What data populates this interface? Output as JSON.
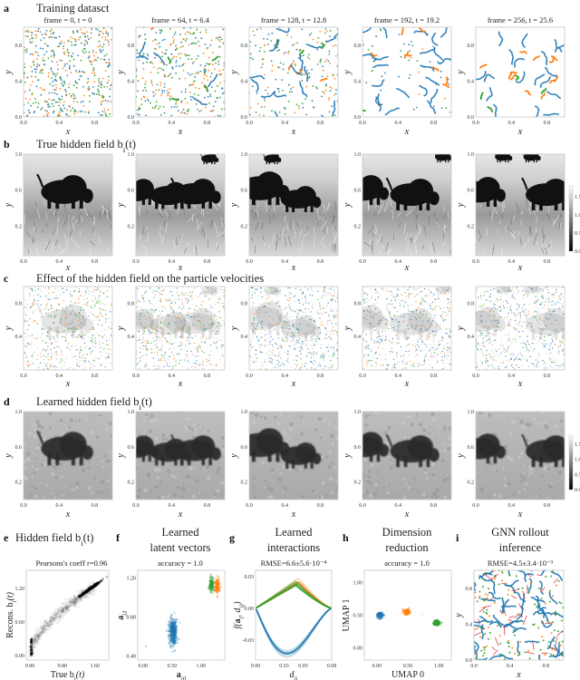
{
  "colors": {
    "type_blue": "#1f77b4",
    "type_orange": "#ff7f0e",
    "type_green": "#2ca02c",
    "rollout_red": "#d62728"
  },
  "chart_data": [
    {
      "panel": "a",
      "type": "scatter",
      "letter": "a",
      "title": "Training datasct",
      "frames": [
        "frame = 0,   t = 0",
        "frame = 64,   t = 6.4",
        "frame = 128,   t = 12.8",
        "frame = 192,   t = 19.2",
        "frame = 256,   t = 25.6"
      ],
      "xlabel": "x",
      "ylabel": "y",
      "xlim": [
        0,
        1
      ],
      "ylim": [
        0,
        1
      ],
      "xticks": [
        "0.0",
        "0.4",
        "0.8"
      ],
      "yticks": [
        "0.0",
        "0.4",
        "0.8"
      ]
    },
    {
      "panel": "b",
      "type": "heatmap",
      "letter": "b",
      "title": [
        "True hidden field b",
        "i",
        "(t)"
      ],
      "xlabel": "x",
      "ylabel": "y",
      "xlim": [
        0,
        1
      ],
      "ylim": [
        -0.13,
        1.0
      ],
      "xticks": [
        "0.0",
        "0.4",
        "0.8"
      ],
      "yticks": [
        "0.2",
        "0.6",
        "1.0"
      ],
      "colorbar_ticks": [
        "0.0",
        "0.5",
        "1.0",
        "1.5"
      ],
      "colormap": "gray"
    },
    {
      "panel": "c",
      "type": "scatter",
      "letter": "c",
      "title": "Effect of the hidden field on the particle velocities",
      "xlabel": "x",
      "ylabel": "y",
      "xlim": [
        0,
        1
      ],
      "ylim": [
        0,
        1
      ],
      "xticks": [
        "0.0",
        "0.4",
        "0.8"
      ],
      "yticks": [
        "0.4",
        "0.8"
      ]
    },
    {
      "panel": "d",
      "type": "heatmap",
      "letter": "d",
      "title": [
        "Learned hidden field b",
        "i",
        "(t)"
      ],
      "xlabel": "x",
      "ylabel": "y",
      "xlim": [
        0,
        1
      ],
      "ylim": [
        0,
        1.0
      ],
      "xticks": [
        "0.0",
        "0.4",
        "0.8"
      ],
      "yticks": [
        "0.2",
        "0.6",
        "1.0"
      ],
      "colorbar_ticks": [
        "0.0",
        "0.5",
        "1.0",
        "1.5"
      ],
      "colormap": "gray"
    },
    {
      "panel": "e",
      "type": "scatter",
      "letter": "e",
      "title": [
        "Hidden field b",
        "i",
        "(t)"
      ],
      "subtitle": "Pearsons's coeff r=0.96",
      "xlabel": [
        "True b",
        "i",
        "(t)"
      ],
      "ylabel": [
        "Recons. b",
        "i",
        "(t)"
      ],
      "xlim": [
        -0.09,
        1.94
      ],
      "ylim": [
        -0.08,
        1.52
      ],
      "xticks": [
        "0.00",
        "0.80",
        "1.60"
      ],
      "yticks": [
        "0.00",
        "0.60",
        "1.20"
      ],
      "dense_cluster": [
        1.5,
        1.2
      ]
    },
    {
      "panel": "f",
      "type": "scatter",
      "letter": "f",
      "title": [
        "Learned",
        "latent vectors"
      ],
      "subtitle": "accuracy = 1.0",
      "xlabel": [
        "a",
        "i0"
      ],
      "ylabel": [
        "a",
        "i1"
      ],
      "xlim": [
        -0.09,
        1.41
      ],
      "ylim": [
        0.36,
        1.28
      ],
      "xticks": [
        "0.00",
        "0.50",
        "1.00"
      ],
      "yticks": [
        "0.40",
        "0.80",
        "1.20"
      ],
      "clusters": [
        {
          "color": "#1f77b4",
          "center": [
            0.52,
            0.65
          ],
          "spread": [
            0.035,
            0.07
          ]
        },
        {
          "color": "#2ca02c",
          "center": [
            1.18,
            1.13
          ],
          "spread": [
            0.02,
            0.04
          ]
        },
        {
          "color": "#ff7f0e",
          "center": [
            1.28,
            1.12
          ],
          "spread": [
            0.02,
            0.04
          ]
        }
      ]
    },
    {
      "panel": "g",
      "type": "line",
      "letter": "g",
      "title": [
        "Learned",
        "interactions"
      ],
      "subtitle": "RMSE=6.6±5.6·10⁻⁴",
      "xlabel": [
        "d",
        "ij"
      ],
      "ylabel": [
        "f(",
        "a",
        "i",
        ", d",
        "ij",
        ")"
      ],
      "xlim": [
        0,
        0.08
      ],
      "ylim": [
        -0.049,
        0.036
      ],
      "xticks": [
        "0.00",
        "0.03",
        "0.05",
        "0.08"
      ],
      "yticks": [
        "0.03",
        "0.00",
        "-0.03"
      ],
      "series": [
        {
          "color": "#1f77b4",
          "extremum": [
            0.033,
            -0.043
          ]
        },
        {
          "color": "#ff7f0e",
          "extremum": [
            0.045,
            0.025
          ]
        },
        {
          "color": "#2ca02c",
          "extremum": [
            0.042,
            0.023
          ]
        }
      ]
    },
    {
      "panel": "h",
      "type": "scatter",
      "letter": "h",
      "title": [
        "Dimension",
        "reduction"
      ],
      "subtitle": "accuracy = 1.0",
      "xlabel": "UMAP 0",
      "ylabel": "UMAP 1",
      "xlim": [
        -0.2,
        1.2
      ],
      "ylim": [
        -0.19,
        1.19
      ],
      "xticks": [
        "0.00",
        "0.50",
        "1.00"
      ],
      "yticks": [
        "0.00",
        "0.50",
        "1.00"
      ],
      "clusters": [
        {
          "color": "#1f77b4",
          "center": [
            0.05,
            0.5
          ]
        },
        {
          "color": "#ff7f0e",
          "center": [
            0.48,
            0.55
          ]
        },
        {
          "color": "#2ca02c",
          "center": [
            0.97,
            0.38
          ]
        }
      ]
    },
    {
      "panel": "i",
      "type": "scatter",
      "letter": "i",
      "title": [
        "GNN rollout",
        "inference"
      ],
      "subtitle": "RMSE=4.5±3.4·10⁻³",
      "xlabel": "x",
      "ylabel": "y",
      "xlim": [
        0,
        1
      ],
      "ylim": [
        0,
        1
      ],
      "xticks": [
        "0.0",
        "0.4",
        "0.8"
      ],
      "yticks": [
        "0.0",
        "0.4",
        "0.8"
      ]
    }
  ]
}
